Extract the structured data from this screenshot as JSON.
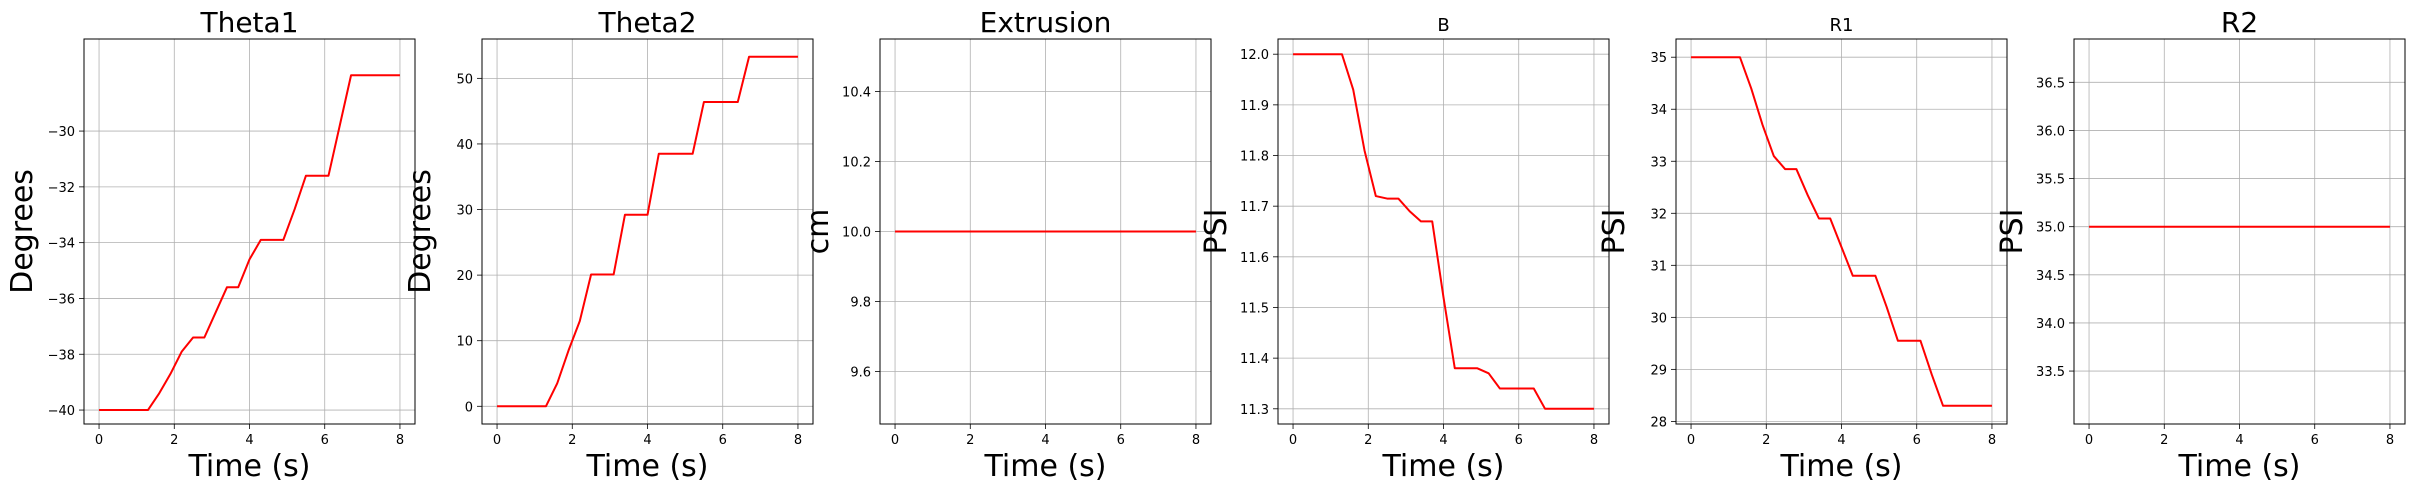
{
  "colors": {
    "series": "#ff0000",
    "grid": "#b0b0b0",
    "axis": "#000000"
  },
  "chart_data": [
    {
      "type": "line",
      "title": "Theta1",
      "xlabel": "Time (s)",
      "ylabel": "Degrees",
      "xlim": [
        -0.4,
        8.4
      ],
      "ylim": [
        -40.5,
        -26.7
      ],
      "xticks": [
        0,
        2,
        4,
        6,
        8
      ],
      "yticks": [
        -40,
        -38,
        -36,
        -34,
        -32,
        -30
      ],
      "xticklabels": [
        "0",
        "2",
        "4",
        "6",
        "8"
      ],
      "yticklabels": [
        "−40",
        "−38",
        "−36",
        "−34",
        "−32",
        "−30"
      ],
      "grid": true,
      "series": [
        {
          "x": [
            0,
            1.3,
            1.6,
            1.9,
            2.2,
            2.5,
            2.8,
            3.1,
            3.4,
            3.7,
            4.0,
            4.3,
            4.6,
            4.9,
            5.2,
            5.5,
            5.8,
            6.1,
            6.4,
            6.7,
            7.0,
            8.0
          ],
          "y": [
            -40.0,
            -40.0,
            -39.4,
            -38.7,
            -37.9,
            -37.4,
            -37.4,
            -36.5,
            -35.6,
            -35.6,
            -34.6,
            -33.9,
            -33.9,
            -33.9,
            -32.8,
            -31.6,
            -31.6,
            -31.6,
            -29.8,
            -28.0,
            -28.0,
            -28.0
          ]
        }
      ]
    },
    {
      "type": "line",
      "title": "Theta2",
      "xlabel": "Time (s)",
      "ylabel": "Degrees",
      "xlim": [
        -0.4,
        8.4
      ],
      "ylim": [
        -2.7,
        56.0
      ],
      "xticks": [
        0,
        2,
        4,
        6,
        8
      ],
      "yticks": [
        0,
        10,
        20,
        30,
        40,
        50
      ],
      "xticklabels": [
        "0",
        "2",
        "4",
        "6",
        "8"
      ],
      "yticklabels": [
        "0",
        "10",
        "20",
        "30",
        "40",
        "50"
      ],
      "grid": true,
      "series": [
        {
          "x": [
            0,
            1.3,
            1.6,
            1.9,
            2.2,
            2.5,
            2.8,
            3.1,
            3.4,
            3.7,
            4.0,
            4.3,
            4.6,
            4.9,
            5.2,
            5.5,
            5.8,
            6.1,
            6.4,
            6.7,
            7.0,
            8.0
          ],
          "y": [
            0,
            0,
            3.5,
            8.5,
            13.0,
            20.1,
            20.1,
            20.1,
            29.2,
            29.2,
            29.2,
            38.5,
            38.5,
            38.5,
            38.5,
            46.4,
            46.4,
            46.4,
            46.4,
            53.3,
            53.3,
            53.3
          ]
        }
      ]
    },
    {
      "type": "line",
      "title": "Extrusion",
      "xlabel": "Time (s)",
      "ylabel": "cm",
      "xlim": [
        -0.4,
        8.4
      ],
      "ylim": [
        9.45,
        10.55
      ],
      "xticks": [
        0,
        2,
        4,
        6,
        8
      ],
      "yticks": [
        9.6,
        9.8,
        10.0,
        10.2,
        10.4
      ],
      "xticklabels": [
        "0",
        "2",
        "4",
        "6",
        "8"
      ],
      "yticklabels": [
        "9.6",
        "9.8",
        "10.0",
        "10.2",
        "10.4"
      ],
      "grid": true,
      "series": [
        {
          "x": [
            0,
            8.0
          ],
          "y": [
            10.0,
            10.0
          ]
        }
      ]
    },
    {
      "type": "line",
      "title": "B",
      "xlabel": "Time (s)",
      "ylabel": "PSI",
      "xlim": [
        -0.4,
        8.4
      ],
      "ylim": [
        11.27,
        12.03
      ],
      "xticks": [
        0,
        2,
        4,
        6,
        8
      ],
      "yticks": [
        11.3,
        11.4,
        11.5,
        11.6,
        11.7,
        11.8,
        11.9,
        12.0
      ],
      "xticklabels": [
        "0",
        "2",
        "4",
        "6",
        "8"
      ],
      "yticklabels": [
        "11.3",
        "11.4",
        "11.5",
        "11.6",
        "11.7",
        "11.8",
        "11.9",
        "12.0"
      ],
      "grid": true,
      "series": [
        {
          "x": [
            0,
            1.3,
            1.6,
            1.9,
            2.2,
            2.5,
            2.8,
            3.1,
            3.4,
            3.7,
            4.0,
            4.3,
            4.6,
            4.9,
            5.2,
            5.5,
            5.8,
            6.1,
            6.4,
            6.7,
            7.0,
            8.0
          ],
          "y": [
            12.0,
            12.0,
            11.93,
            11.81,
            11.72,
            11.715,
            11.715,
            11.69,
            11.67,
            11.67,
            11.52,
            11.38,
            11.38,
            11.38,
            11.37,
            11.34,
            11.34,
            11.34,
            11.34,
            11.3,
            11.3,
            11.3
          ]
        }
      ]
    },
    {
      "type": "line",
      "title": "R1",
      "xlabel": "Time (s)",
      "ylabel": "PSI",
      "xlim": [
        -0.4,
        8.4
      ],
      "ylim": [
        27.95,
        35.35
      ],
      "xticks": [
        0,
        2,
        4,
        6,
        8
      ],
      "yticks": [
        28,
        29,
        30,
        31,
        32,
        33,
        34,
        35
      ],
      "xticklabels": [
        "0",
        "2",
        "4",
        "6",
        "8"
      ],
      "yticklabels": [
        "28",
        "29",
        "30",
        "31",
        "32",
        "33",
        "34",
        "35"
      ],
      "grid": true,
      "series": [
        {
          "x": [
            0,
            1.3,
            1.6,
            1.9,
            2.2,
            2.5,
            2.8,
            3.1,
            3.4,
            3.7,
            4.0,
            4.3,
            4.6,
            4.9,
            5.2,
            5.5,
            5.8,
            6.1,
            6.4,
            6.7,
            7.0,
            8.0
          ],
          "y": [
            35.0,
            35.0,
            34.4,
            33.7,
            33.1,
            32.85,
            32.85,
            32.35,
            31.9,
            31.9,
            31.35,
            30.8,
            30.8,
            30.8,
            30.2,
            29.55,
            29.55,
            29.55,
            28.9,
            28.3,
            28.3,
            28.3
          ]
        }
      ]
    },
    {
      "type": "line",
      "title": "R2",
      "xlabel": "Time (s)",
      "ylabel": "PSI",
      "xlim": [
        -0.4,
        8.4
      ],
      "ylim": [
        32.95,
        36.95
      ],
      "xticks": [
        0,
        2,
        4,
        6,
        8
      ],
      "yticks": [
        33.5,
        34.0,
        34.5,
        35.0,
        35.5,
        36.0,
        36.5
      ],
      "xticklabels": [
        "0",
        "2",
        "4",
        "6",
        "8"
      ],
      "yticklabels": [
        "33.5",
        "34.0",
        "34.5",
        "35.0",
        "35.5",
        "36.0",
        "36.5"
      ],
      "grid": true,
      "series": [
        {
          "x": [
            0,
            8.0
          ],
          "y": [
            35.0,
            35.0
          ]
        }
      ]
    }
  ]
}
